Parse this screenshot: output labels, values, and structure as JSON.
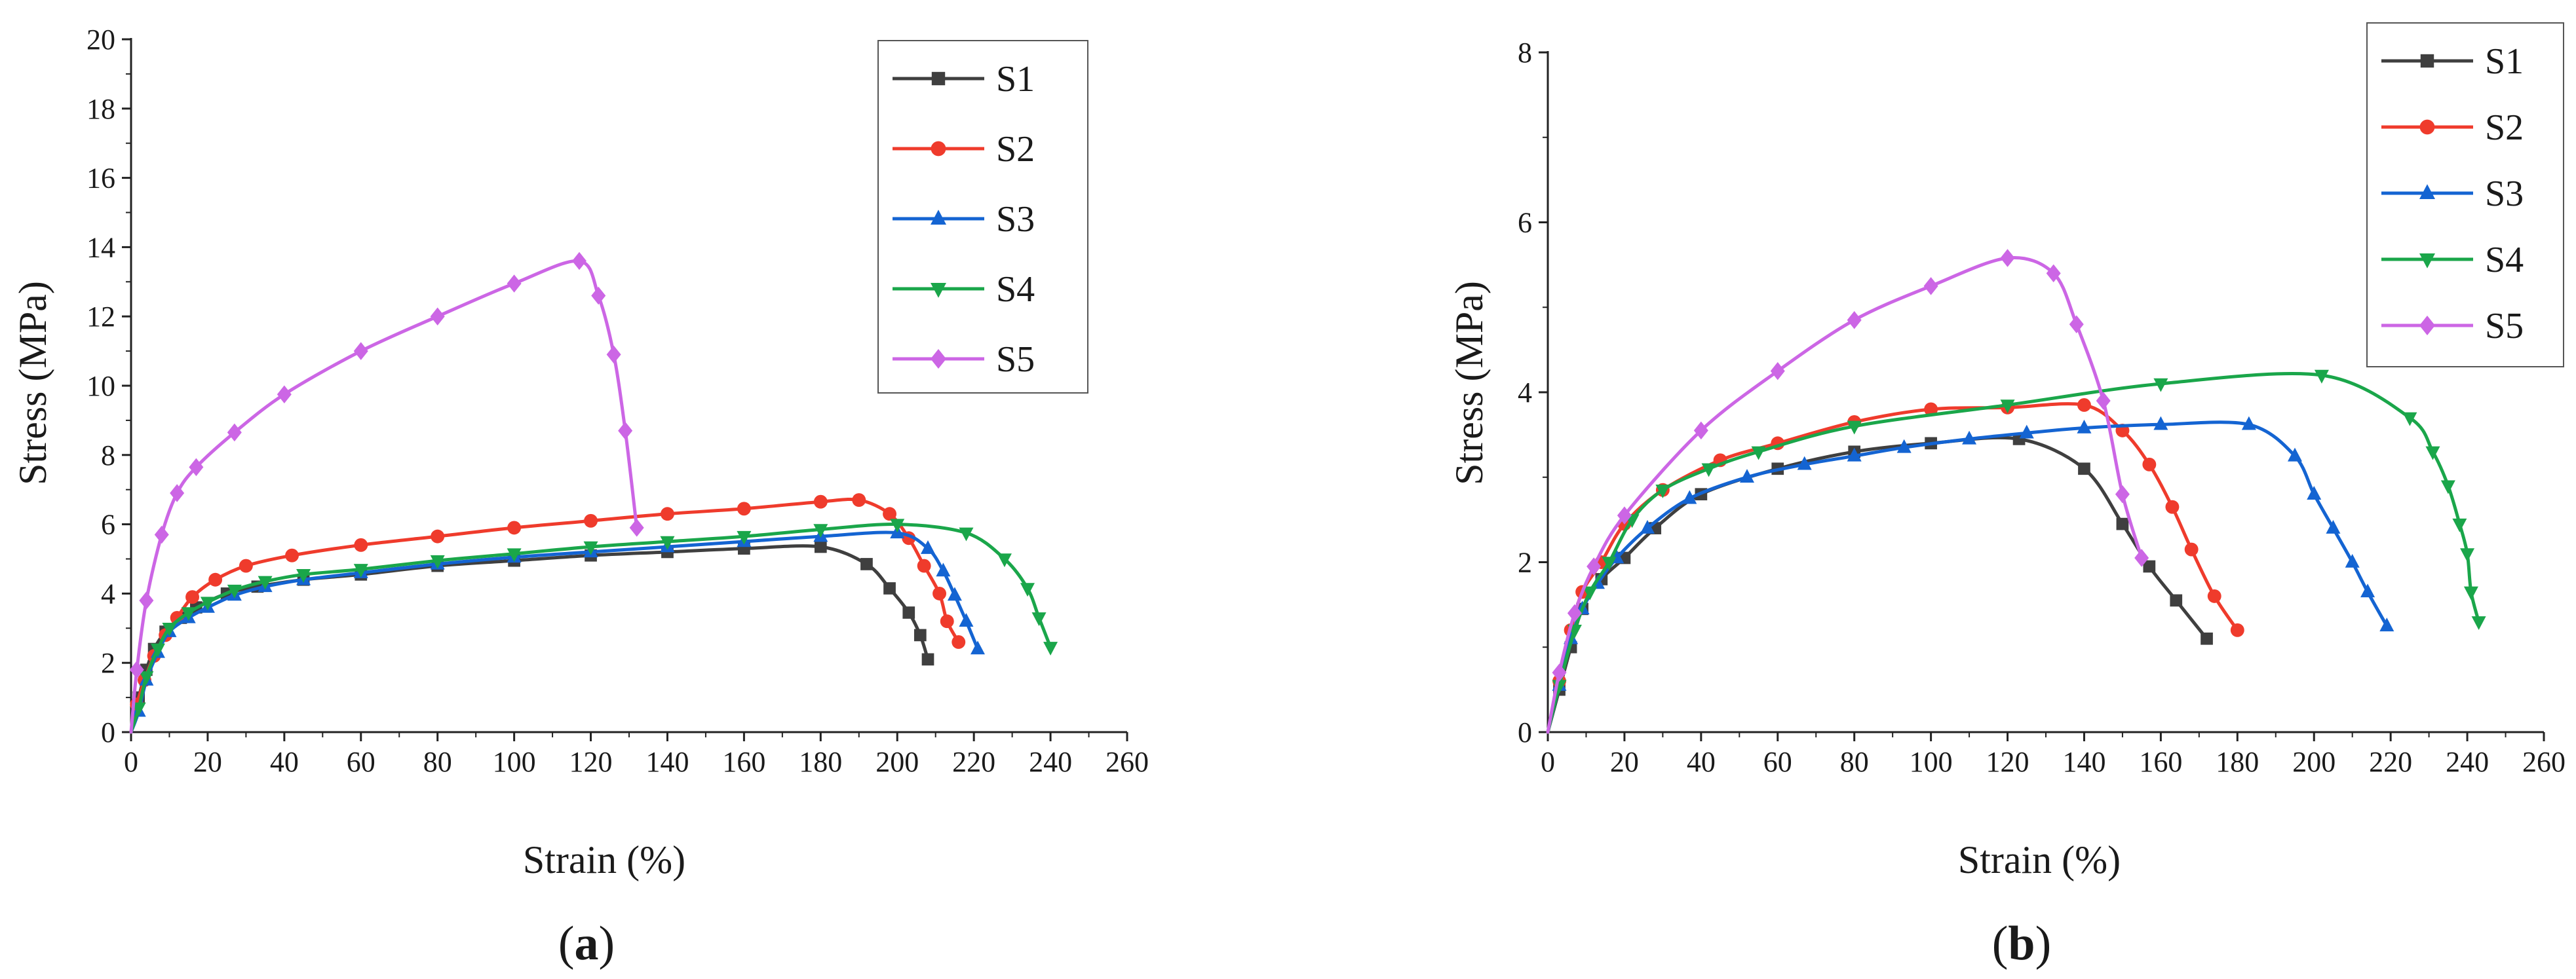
{
  "chart_data": [
    {
      "type": "line",
      "panel_label": "a",
      "xlabel": "Strain (%)",
      "ylabel": "Stress (MPa)",
      "xlim": [
        0,
        260
      ],
      "ylim": [
        0,
        20
      ],
      "xticks": [
        0,
        20,
        40,
        60,
        80,
        100,
        120,
        140,
        160,
        180,
        200,
        220,
        240,
        260
      ],
      "yticks": [
        0,
        2,
        4,
        6,
        8,
        10,
        12,
        14,
        16,
        18,
        20
      ],
      "legend_position": "top-right",
      "series": [
        {
          "name": "S1",
          "color": "#3f3f3f",
          "marker": "square",
          "x": [
            0,
            2,
            4,
            6,
            9,
            13,
            17,
            25,
            33,
            45,
            60,
            80,
            100,
            120,
            140,
            160,
            180,
            192,
            198,
            203,
            206,
            208
          ],
          "y": [
            0,
            1.0,
            1.8,
            2.4,
            2.9,
            3.3,
            3.6,
            4.0,
            4.2,
            4.4,
            4.55,
            4.8,
            4.95,
            5.1,
            5.2,
            5.3,
            5.35,
            4.85,
            4.15,
            3.45,
            2.8,
            2.1
          ]
        },
        {
          "name": "S2",
          "color": "#ef3b2c",
          "marker": "circle",
          "x": [
            0,
            1.5,
            3.5,
            6,
            9,
            12,
            16,
            22,
            30,
            42,
            60,
            80,
            100,
            120,
            140,
            160,
            180,
            190,
            198,
            203,
            207,
            211,
            213,
            216
          ],
          "y": [
            0,
            0.8,
            1.5,
            2.2,
            2.8,
            3.3,
            3.9,
            4.4,
            4.8,
            5.1,
            5.4,
            5.65,
            5.9,
            6.1,
            6.3,
            6.45,
            6.65,
            6.7,
            6.3,
            5.6,
            4.8,
            4.0,
            3.2,
            2.6
          ]
        },
        {
          "name": "S3",
          "color": "#1464d2",
          "marker": "triangle-up",
          "x": [
            0,
            2,
            4,
            7,
            10,
            15,
            20,
            27,
            35,
            45,
            60,
            80,
            100,
            120,
            140,
            160,
            180,
            200,
            208,
            212,
            215,
            218,
            221
          ],
          "y": [
            0,
            0.6,
            1.5,
            2.3,
            2.9,
            3.3,
            3.6,
            3.95,
            4.2,
            4.4,
            4.6,
            4.85,
            5.05,
            5.2,
            5.35,
            5.5,
            5.65,
            5.75,
            5.3,
            4.65,
            3.95,
            3.2,
            2.4
          ]
        },
        {
          "name": "S4",
          "color": "#1aa64a",
          "marker": "triangle-down",
          "x": [
            0,
            2,
            4,
            7,
            10,
            15,
            20,
            27,
            35,
            45,
            60,
            80,
            100,
            120,
            140,
            160,
            180,
            200,
            218,
            228,
            234,
            237,
            240
          ],
          "y": [
            0,
            0.7,
            1.6,
            2.4,
            3.0,
            3.45,
            3.75,
            4.1,
            4.35,
            4.55,
            4.7,
            4.95,
            5.15,
            5.35,
            5.5,
            5.65,
            5.85,
            6.0,
            5.75,
            5.0,
            4.15,
            3.3,
            2.45
          ]
        },
        {
          "name": "S5",
          "color": "#cc66e5",
          "marker": "diamond",
          "x": [
            0,
            1.5,
            4,
            8,
            12,
            17,
            27,
            40,
            60,
            80,
            100,
            117,
            122,
            126,
            129,
            132
          ],
          "y": [
            0,
            1.8,
            3.8,
            5.7,
            6.9,
            7.65,
            8.65,
            9.75,
            11.0,
            12.0,
            12.95,
            13.6,
            12.6,
            10.9,
            8.7,
            5.9
          ]
        }
      ]
    },
    {
      "type": "line",
      "panel_label": "b",
      "xlabel": "Strain (%)",
      "ylabel": "Stress (MPa)",
      "xlim": [
        0,
        260
      ],
      "ylim": [
        0,
        8
      ],
      "xticks": [
        0,
        20,
        40,
        60,
        80,
        100,
        120,
        140,
        160,
        180,
        200,
        220,
        240,
        260
      ],
      "yticks": [
        0,
        2,
        4,
        6,
        8
      ],
      "legend_position": "top-right",
      "series": [
        {
          "name": "S1",
          "color": "#3f3f3f",
          "marker": "square",
          "x": [
            0,
            3,
            6,
            9,
            14,
            20,
            28,
            40,
            60,
            80,
            100,
            123,
            140,
            150,
            157,
            164,
            172
          ],
          "y": [
            0,
            0.5,
            1.0,
            1.45,
            1.8,
            2.05,
            2.4,
            2.8,
            3.1,
            3.3,
            3.4,
            3.45,
            3.1,
            2.45,
            1.95,
            1.55,
            1.1
          ]
        },
        {
          "name": "S2",
          "color": "#ef3b2c",
          "marker": "circle",
          "x": [
            0,
            3,
            6,
            9,
            14,
            20,
            30,
            45,
            60,
            80,
            100,
            120,
            140,
            150,
            157,
            163,
            168,
            174,
            180
          ],
          "y": [
            0,
            0.6,
            1.2,
            1.65,
            2.0,
            2.45,
            2.85,
            3.2,
            3.4,
            3.65,
            3.8,
            3.82,
            3.85,
            3.55,
            3.15,
            2.65,
            2.15,
            1.6,
            1.2
          ]
        },
        {
          "name": "S3",
          "color": "#1464d2",
          "marker": "triangle-up",
          "x": [
            0,
            3,
            6,
            9,
            13,
            18,
            26,
            37,
            52,
            67,
            80,
            93,
            110,
            125,
            140,
            160,
            183,
            195,
            200,
            205,
            210,
            214,
            219
          ],
          "y": [
            0,
            0.55,
            1.1,
            1.45,
            1.75,
            2.05,
            2.4,
            2.75,
            3.0,
            3.15,
            3.25,
            3.35,
            3.45,
            3.52,
            3.58,
            3.62,
            3.62,
            3.25,
            2.8,
            2.4,
            2.0,
            1.65,
            1.25
          ]
        },
        {
          "name": "S4",
          "color": "#1aa64a",
          "marker": "triangle-down",
          "x": [
            0,
            3,
            7,
            11,
            16,
            22,
            30,
            42,
            55,
            80,
            120,
            160,
            202,
            225,
            231,
            235,
            238,
            240,
            241,
            243
          ],
          "y": [
            0,
            0.55,
            1.2,
            1.65,
            2.0,
            2.5,
            2.85,
            3.1,
            3.3,
            3.6,
            3.85,
            4.1,
            4.2,
            3.7,
            3.3,
            2.9,
            2.45,
            2.1,
            1.65,
            1.3
          ]
        },
        {
          "name": "S5",
          "color": "#cc66e5",
          "marker": "diamond",
          "x": [
            0,
            3,
            7,
            12,
            20,
            40,
            60,
            80,
            100,
            120,
            132,
            138,
            145,
            150,
            155
          ],
          "y": [
            0,
            0.7,
            1.4,
            1.95,
            2.55,
            3.55,
            4.25,
            4.85,
            5.25,
            5.58,
            5.4,
            4.8,
            3.9,
            2.8,
            2.05
          ]
        }
      ]
    }
  ]
}
